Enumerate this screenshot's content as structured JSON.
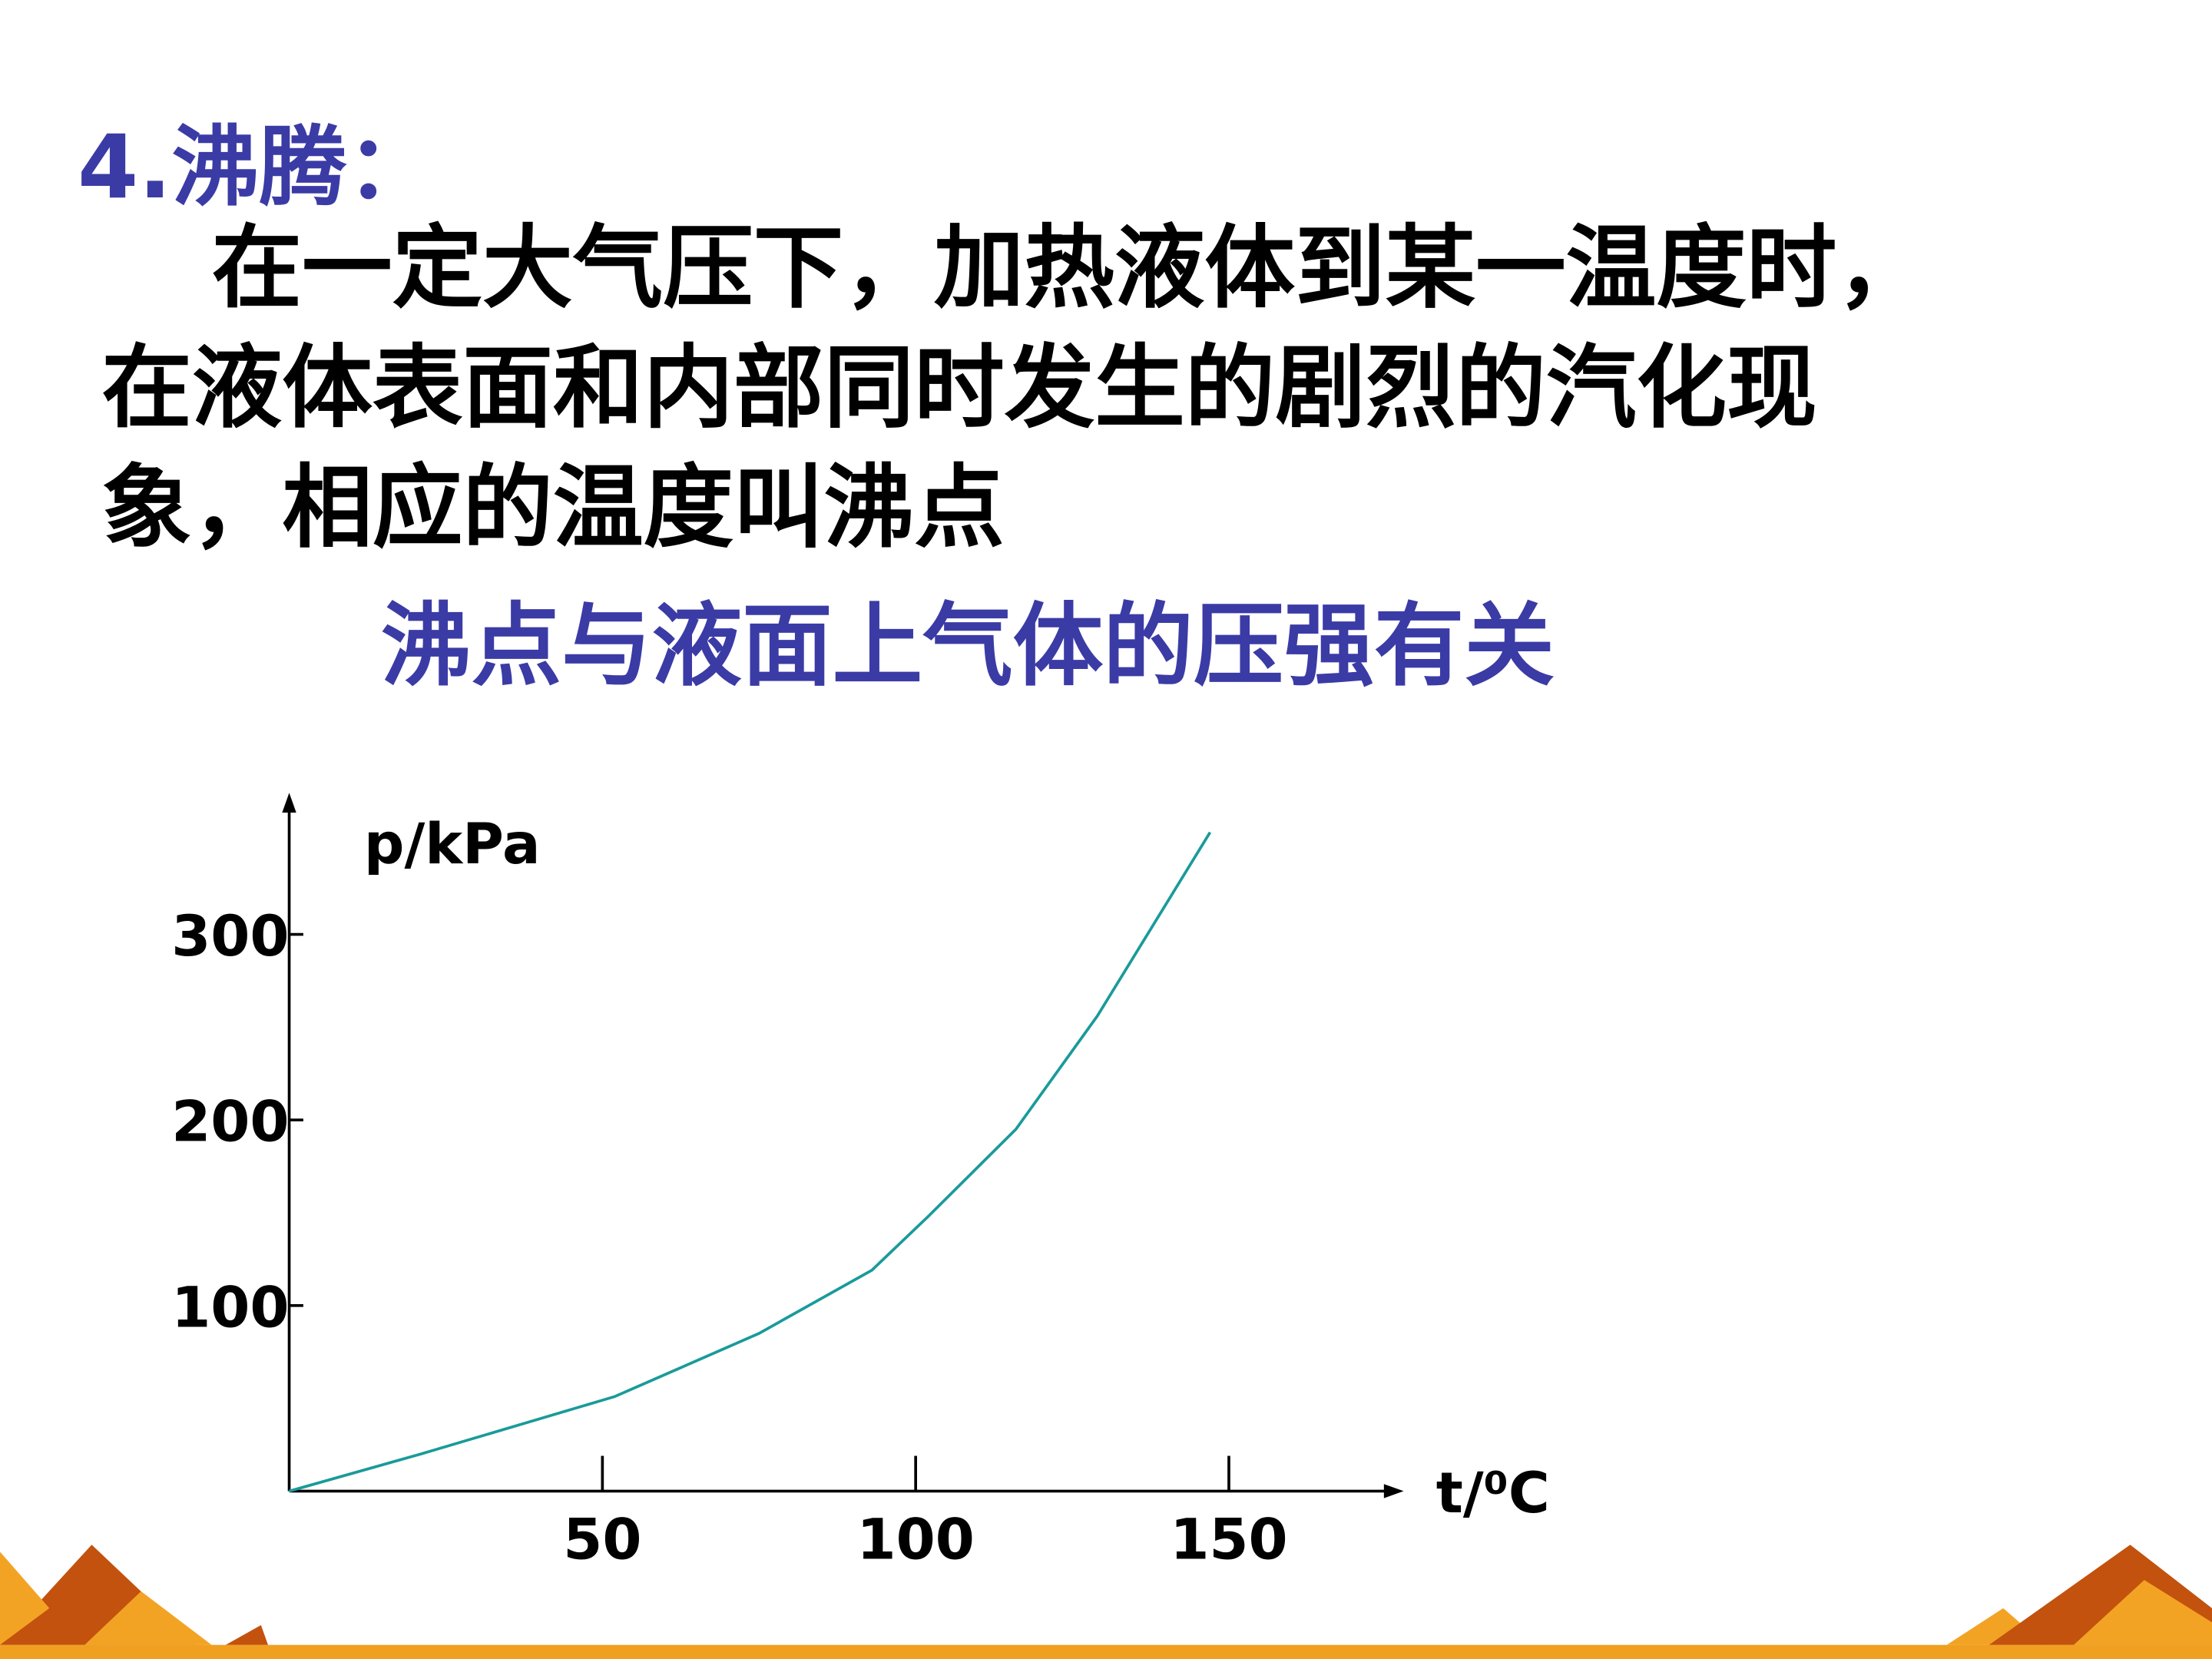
{
  "slide": {
    "heading": "4.沸腾：",
    "paragraph": [
      "在一定大气压下，加热液体到某一温度时，",
      "在液体表面和内部同时发生的剧烈的汽化现",
      "象，相应的温度叫沸点"
    ],
    "subheading": "沸点与液面上气体的压强有关"
  },
  "chart_data": {
    "type": "line",
    "y_label": "p/kPa",
    "x_label": "t/⁰C",
    "x": [
      0,
      21,
      52,
      75,
      93,
      102,
      116,
      129,
      147
    ],
    "series": [
      {
        "color": "#1a9a9a",
        "values": [
          0,
          20,
          51,
          85,
          119,
          148,
          195,
          256,
          355
        ]
      }
    ],
    "xlim": [
      0,
      177
    ],
    "ylim": [
      0,
      374
    ],
    "xticks": [
      50,
      100,
      150
    ],
    "yticks": [
      100,
      200,
      300
    ]
  }
}
